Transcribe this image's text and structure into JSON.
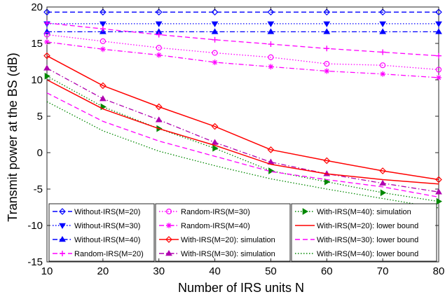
{
  "chart_data": {
    "type": "line",
    "xlabel": "Number of IRS units N",
    "ylabel": "Transmit power at the BS (dB)",
    "xlim": [
      10,
      80
    ],
    "ylim": [
      -15,
      20
    ],
    "xticks": [
      "10",
      "20",
      "30",
      "40",
      "50",
      "60",
      "70",
      "80"
    ],
    "yticks": [
      "20",
      "15",
      "10",
      "5",
      "0",
      "-5",
      "-10",
      "-15"
    ],
    "x": [
      10,
      20,
      30,
      40,
      50,
      60,
      70,
      80
    ],
    "series": [
      {
        "name": "Without-IRS(M=20)",
        "color": "#0000ff",
        "dash": "dashed",
        "marker": "diamond",
        "values": [
          19.3,
          19.3,
          19.3,
          19.3,
          19.3,
          19.3,
          19.3,
          19.3
        ]
      },
      {
        "name": "Without-IRS(M=30)",
        "color": "#0000ff",
        "dash": "dotted",
        "marker": "triangle-down",
        "values": [
          17.7,
          17.7,
          17.7,
          17.7,
          17.7,
          17.7,
          17.7,
          17.7
        ]
      },
      {
        "name": "Without-IRS(M=40)",
        "color": "#0000ff",
        "dash": "dashdot",
        "marker": "triangle-up",
        "values": [
          16.6,
          16.6,
          16.6,
          16.6,
          16.6,
          16.6,
          16.6,
          16.6
        ]
      },
      {
        "name": "Random-IRS(M=20)",
        "color": "#ff00ff",
        "dash": "dashed",
        "marker": "plus",
        "values": [
          17.8,
          17.0,
          16.2,
          15.5,
          14.9,
          14.3,
          13.8,
          13.3
        ]
      },
      {
        "name": "Random-IRS(M=30)",
        "color": "#ff00ff",
        "dash": "dotted",
        "marker": "circle",
        "values": [
          16.2,
          15.3,
          14.4,
          13.7,
          13.1,
          12.2,
          12.0,
          11.4
        ]
      },
      {
        "name": "Random-IRS(M=40)",
        "color": "#ff00ff",
        "dash": "dashdot",
        "marker": "star",
        "values": [
          15.2,
          14.2,
          13.4,
          12.4,
          11.8,
          11.2,
          10.8,
          10.3
        ]
      },
      {
        "name": "With-IRS(M=20): simulation",
        "color": "#ff0000",
        "dash": "solid",
        "marker": "diamond",
        "values": [
          13.3,
          9.2,
          6.3,
          3.6,
          0.4,
          -1.1,
          -2.5,
          -3.7
        ]
      },
      {
        "name": "With-IRS(M=30): simulation",
        "color": "#b000b0",
        "dash": "dashdot",
        "marker": "triangle-up",
        "values": [
          11.6,
          7.4,
          4.5,
          1.4,
          -1.3,
          -2.9,
          -4.2,
          -5.4
        ]
      },
      {
        "name": "With-IRS(M=40): simulation",
        "color": "#008800",
        "dash": "dotted",
        "marker": "triangle-right",
        "values": [
          10.5,
          6.3,
          3.3,
          0.6,
          -2.5,
          -4.0,
          -5.5,
          -6.7
        ]
      },
      {
        "name": "With-IRS(M=20): lower bound",
        "color": "#ff0000",
        "dash": "solid",
        "marker": "none",
        "values": [
          10.0,
          6.0,
          3.3,
          1.0,
          -1.6,
          -2.9,
          -3.7,
          -4.3
        ]
      },
      {
        "name": "With-IRS(M=30): lower bound",
        "color": "#ff00ff",
        "dash": "dashed",
        "marker": "none",
        "values": [
          8.2,
          4.3,
          1.6,
          -0.5,
          -2.6,
          -3.7,
          -4.7,
          -6.1
        ]
      },
      {
        "name": "With-IRS(M=40): lower bound",
        "color": "#008800",
        "dash": "dotted",
        "marker": "none",
        "values": [
          7.0,
          3.0,
          0.2,
          -1.8,
          -3.6,
          -5.0,
          -6.3,
          -7.6
        ]
      }
    ],
    "grid": false,
    "legend_position": "bottom"
  }
}
